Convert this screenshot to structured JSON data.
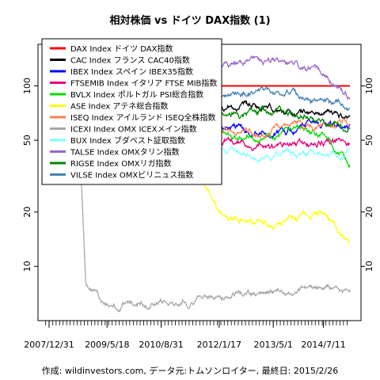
{
  "chart_data": {
    "type": "line",
    "title": "相対株価 vs ドイツ DAX指数 (1)",
    "caption": "作成: wildinvestors.com, データ元:トムソンロイター, 最終日: 2015/2/26",
    "y_scale": "log",
    "ylim": [
      5,
      170
    ],
    "y_ticks": [
      10,
      20,
      50,
      100
    ],
    "x_range": [
      "2007-12-31",
      "2015-02-26"
    ],
    "x_ticks": [
      "2007/12/31",
      "2009/5/18",
      "2010/8/31",
      "2012/1/17",
      "2013/5/1",
      "2014/7/11"
    ],
    "grid": false,
    "legend_position": "top-left",
    "series": [
      {
        "name": "DAX Index ドイツ DAX指数",
        "color": "#ff0000",
        "x": [
          "2007-12-31",
          "2015-02-26"
        ],
        "y": [
          100,
          100
        ]
      },
      {
        "name": "CAC Index フランス CAC40指数",
        "color": "#000000",
        "x": [
          "2007-12-31",
          "2008-10-15",
          "2009-05-18",
          "2010-08-31",
          "2011-08-15",
          "2012-01-17",
          "2013-05-01",
          "2014-07-11",
          "2015-02-26"
        ],
        "y": [
          100,
          92,
          87,
          82,
          78,
          76,
          72,
          70,
          67
        ]
      },
      {
        "name": "IBEX Index スペイン IBEX35指数",
        "color": "#0000ff",
        "x": [
          "2007-12-31",
          "2008-10-15",
          "2009-05-18",
          "2010-08-31",
          "2011-08-15",
          "2012-01-17",
          "2013-05-01",
          "2014-07-11",
          "2015-02-26"
        ],
        "y": [
          100,
          90,
          80,
          72,
          66,
          58,
          55,
          62,
          58
        ]
      },
      {
        "name": "FTSEMIB Index イタリア FTSE MIB指数",
        "color": "#e6007e",
        "x": [
          "2007-12-31",
          "2008-10-15",
          "2009-05-18",
          "2010-08-31",
          "2011-08-15",
          "2012-01-17",
          "2013-05-01",
          "2014-07-11",
          "2015-02-26"
        ],
        "y": [
          100,
          85,
          72,
          62,
          56,
          50,
          45,
          48,
          48
        ]
      },
      {
        "name": "BVLX Index ポルトガル PSI総合指数",
        "color": "#00dd00",
        "x": [
          "2007-12-31",
          "2008-10-15",
          "2009-05-18",
          "2010-08-31",
          "2011-08-15",
          "2012-01-17",
          "2013-05-01",
          "2014-07-11",
          "2015-02-26"
        ],
        "y": [
          100,
          82,
          75,
          68,
          62,
          56,
          55,
          52,
          37
        ]
      },
      {
        "name": "ASE Index アテネ総合指数",
        "color": "#ffff00",
        "x": [
          "2007-12-31",
          "2008-10-15",
          "2009-05-18",
          "2010-08-31",
          "2011-08-15",
          "2012-01-17",
          "2013-05-01",
          "2014-07-11",
          "2015-02-26"
        ],
        "y": [
          100,
          70,
          68,
          42,
          28,
          20,
          17,
          20,
          13
        ]
      },
      {
        "name": "ISEQ Index アイルランド ISEQ全株指数",
        "color": "#ff7f50",
        "x": [
          "2007-12-31",
          "2008-10-15",
          "2009-05-18",
          "2010-08-31",
          "2011-08-15",
          "2012-01-17",
          "2013-05-01",
          "2014-07-11",
          "2015-02-26"
        ],
        "y": [
          100,
          68,
          55,
          50,
          55,
          52,
          58,
          60,
          65
        ]
      },
      {
        "name": "ICEXI Index OMX ICEXメイン指数",
        "color": "#a8a8a8",
        "x": [
          "2007-12-31",
          "2008-06-15",
          "2008-10-01",
          "2008-11-15",
          "2009-05-18",
          "2010-08-31",
          "2012-01-17",
          "2013-05-01",
          "2014-07-11",
          "2015-02-26"
        ],
        "y": [
          100,
          90,
          40,
          8,
          6,
          6.5,
          6.8,
          7,
          7.4,
          7.3
        ]
      },
      {
        "name": "BUX Index ブダペスト証取指数",
        "color": "#7fffff",
        "x": [
          "2007-12-31",
          "2008-10-15",
          "2009-05-18",
          "2010-08-31",
          "2011-08-15",
          "2012-01-17",
          "2013-05-01",
          "2014-07-11",
          "2015-02-26"
        ],
        "y": [
          100,
          80,
          70,
          62,
          50,
          45,
          42,
          42,
          44
        ]
      },
      {
        "name": "TALSE Index OMXタリン指数",
        "color": "#9966cc",
        "x": [
          "2007-12-31",
          "2008-10-15",
          "2009-05-18",
          "2010-08-31",
          "2011-08-15",
          "2012-01-17",
          "2013-05-01",
          "2014-07-11",
          "2015-02-26"
        ],
        "y": [
          100,
          80,
          75,
          95,
          110,
          125,
          140,
          120,
          90
        ]
      },
      {
        "name": "RIGSE Index OMXリガ指数",
        "color": "#008800",
        "x": [
          "2007-12-31",
          "2008-10-15",
          "2009-05-18",
          "2010-08-31",
          "2011-08-15",
          "2012-01-17",
          "2013-05-01",
          "2014-07-11",
          "2015-02-26"
        ],
        "y": [
          100,
          75,
          60,
          62,
          68,
          70,
          72,
          66,
          60
        ]
      },
      {
        "name": "VILSE Index OMXビリニュス指数",
        "color": "#4682b4",
        "x": [
          "2007-12-31",
          "2008-10-15",
          "2009-05-18",
          "2010-08-31",
          "2011-08-15",
          "2012-01-17",
          "2013-05-01",
          "2014-07-11",
          "2015-02-26"
        ],
        "y": [
          100,
          78,
          70,
          80,
          88,
          90,
          92,
          82,
          78
        ]
      }
    ]
  }
}
